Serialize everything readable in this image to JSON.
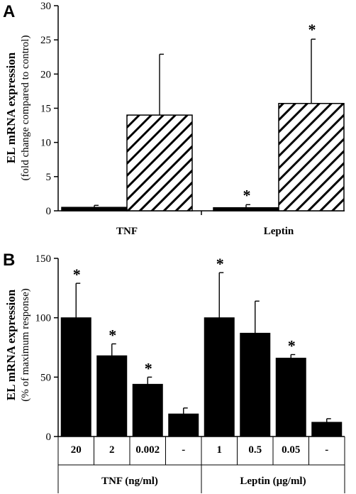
{
  "colors": {
    "bar": "#000000",
    "hatch_stroke": "#000000",
    "background": "#ffffff"
  },
  "chart_data": [
    {
      "panel": "A",
      "type": "bar",
      "categories": [
        "TNF",
        "Leptin"
      ],
      "series": [
        {
          "fill": "solid",
          "values": [
            0.5,
            0.45
          ],
          "errors": [
            0.3,
            0.45
          ]
        },
        {
          "fill": "hatched",
          "values": [
            14.0,
            15.7
          ],
          "errors": [
            8.9,
            9.4
          ]
        }
      ],
      "significant": [
        [
          false,
          true
        ],
        [
          false,
          true
        ]
      ],
      "annotation": "*",
      "ylabel": "EL mRNA expression",
      "ylabel_sub": "(fold change compared to control)",
      "ylim": [
        0,
        30
      ],
      "yticks": [
        0,
        5,
        10,
        15,
        20,
        25,
        30
      ],
      "grid": false,
      "legend": "none"
    },
    {
      "panel": "B",
      "type": "bar",
      "groups": [
        {
          "label": "TNF (ng/ml)",
          "categories": [
            "20",
            "2",
            "0.002",
            "-"
          ],
          "values": [
            100,
            68,
            44,
            19
          ],
          "errors": [
            29,
            10,
            6,
            5
          ],
          "significant": [
            true,
            true,
            true,
            false
          ]
        },
        {
          "label": "Leptin (µg/ml)",
          "categories": [
            "1",
            "0.5",
            "0.05",
            "-"
          ],
          "values": [
            100,
            87,
            66,
            12
          ],
          "errors": [
            38,
            27,
            3,
            3
          ],
          "significant": [
            true,
            false,
            true,
            false
          ]
        }
      ],
      "annotation": "*",
      "ylabel": "EL mRNA expression",
      "ylabel_sub": "(% of maximum response)",
      "ylim": [
        0,
        150
      ],
      "yticks": [
        0,
        50,
        100,
        150
      ],
      "grid": false,
      "legend": "none"
    }
  ]
}
